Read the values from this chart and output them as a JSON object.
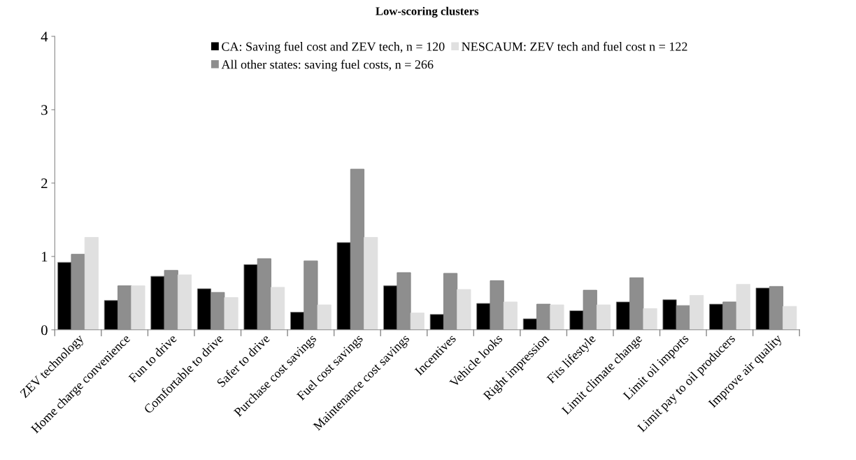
{
  "chart_data": {
    "type": "bar",
    "title": "Low-scoring clusters",
    "categories": [
      "ZEV technology",
      "Home charge convenience",
      "Fun to drive",
      "Comfortable to drive",
      "Safer to drive",
      "Purchase cost savings",
      "Fuel cost savings",
      "Maintenance cost savings",
      "Incentives",
      "Vehicle looks",
      "Right impression",
      "Fits lifestyle",
      "Limit climate change",
      "Limit oil imports",
      "Limit pay to oil producers",
      "Improve air quality"
    ],
    "series": [
      {
        "name": "CA: Saving fuel cost and ZEV tech, n = 120",
        "color": "#000000",
        "values": [
          0.92,
          0.4,
          0.73,
          0.56,
          0.89,
          0.24,
          1.19,
          0.6,
          0.21,
          0.36,
          0.15,
          0.26,
          0.38,
          0.41,
          0.35,
          0.57
        ]
      },
      {
        "name": "All other states: saving fuel costs, n = 266",
        "color": "#8e8e8e",
        "values": [
          1.03,
          0.6,
          0.81,
          0.51,
          0.97,
          0.94,
          2.19,
          0.78,
          0.77,
          0.67,
          0.35,
          0.54,
          0.71,
          0.33,
          0.38,
          0.59
        ]
      },
      {
        "name": "NESCAUM: ZEV tech and fuel cost n = 122",
        "color": "#e0e0e0",
        "values": [
          1.26,
          0.6,
          0.75,
          0.44,
          0.58,
          0.34,
          1.26,
          0.23,
          0.55,
          0.38,
          0.34,
          0.34,
          0.29,
          0.47,
          0.62,
          0.32
        ]
      }
    ],
    "ylim": [
      0,
      4
    ],
    "yticks": [
      0,
      1,
      2,
      3,
      4
    ],
    "grid": false,
    "legend": "top"
  }
}
